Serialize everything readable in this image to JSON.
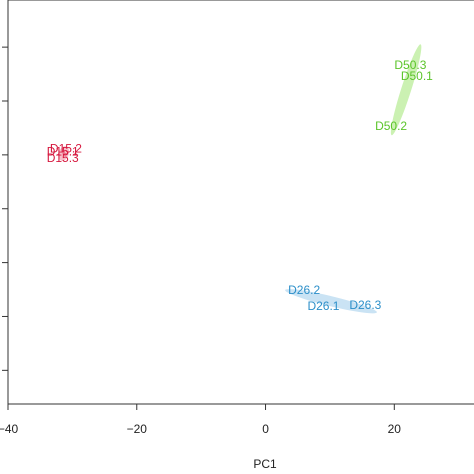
{
  "chart_data": {
    "type": "scatter",
    "title": "",
    "xlabel": "PC1",
    "ylabel": "",
    "xlim": [
      -40,
      33
    ],
    "ylim": [
      -1.5,
      1.5
    ],
    "x_ticks": [
      -40,
      -20,
      0,
      20
    ],
    "x_tick_labels": [
      "−40",
      "−20",
      "0",
      "20"
    ],
    "y_ticks": [
      -1.25,
      -0.85,
      -0.45,
      -0.05,
      0.35,
      0.75,
      1.15
    ],
    "grid": false,
    "legend": "none",
    "series": [
      {
        "color": "#d6193f",
        "ellipse_color": "#f4a9b8",
        "points": [
          {
            "label": "D15.1",
            "x": -31.5,
            "y": 0.37
          },
          {
            "label": "D15.2",
            "x": -31.0,
            "y": 0.39
          },
          {
            "label": "D15.3",
            "x": -31.5,
            "y": 0.32
          }
        ]
      },
      {
        "color": "#5bc42a",
        "ellipse_color": "#b9ec98",
        "points": [
          {
            "label": "D50.3",
            "x": 22.5,
            "y": 1.01
          },
          {
            "label": "D50.1",
            "x": 23.5,
            "y": 0.93
          },
          {
            "label": "D50.2",
            "x": 19.5,
            "y": 0.56
          }
        ]
      },
      {
        "color": "#2c8fc9",
        "ellipse_color": "#b8daf0",
        "points": [
          {
            "label": "D26.2",
            "x": 6.0,
            "y": -0.66
          },
          {
            "label": "D26.1",
            "x": 9.0,
            "y": -0.78
          },
          {
            "label": "D26.3",
            "x": 15.5,
            "y": -0.77
          }
        ]
      }
    ]
  }
}
